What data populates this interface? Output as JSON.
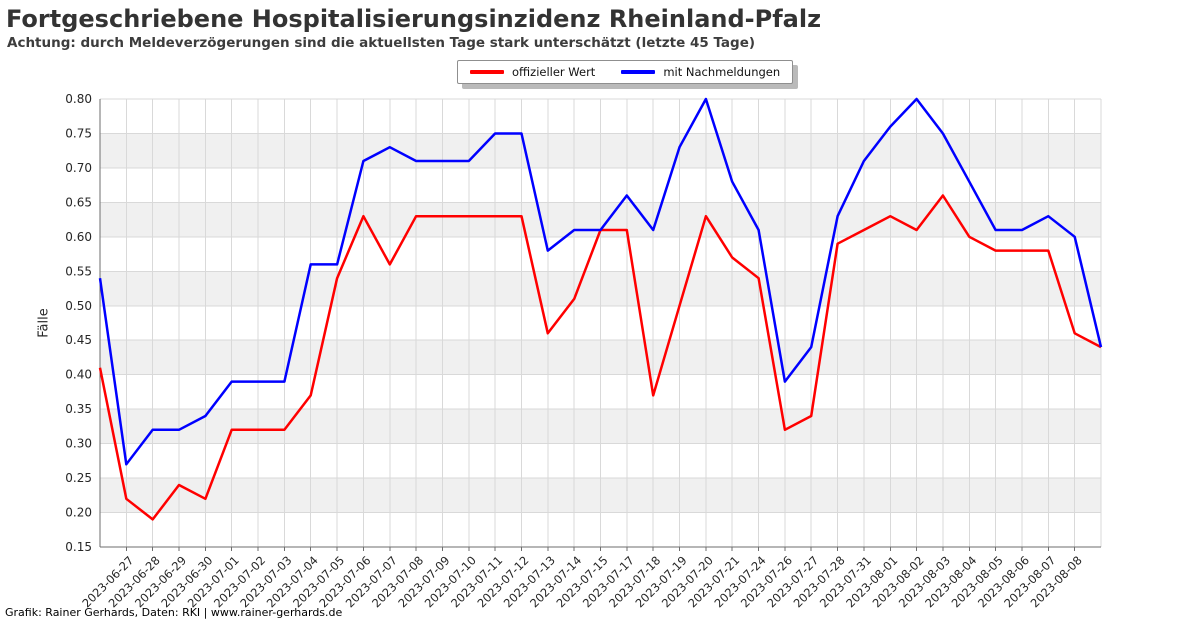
{
  "chart_data": {
    "type": "line",
    "title": "Fortgeschriebene Hospitalisierungsinzidenz Rheinland-Pfalz",
    "subtitle": "Achtung: durch Meldeverzögerungen sind die aktuellsten Tage stark unterschätzt (letzte 45 Tage)",
    "ylabel": "Fälle",
    "xlabel": "",
    "ylim": [
      0.15,
      0.8
    ],
    "ytick_step": 0.05,
    "grid": true,
    "legend_position": "top-center",
    "band_color": "#f0f0f0",
    "gridline_color": "#d9d9d9",
    "spine_color": "#6e6e6e",
    "tick_label_color": "#262626",
    "categories": [
      "2023-06-27",
      "2023-06-28",
      "2023-06-29",
      "2023-06-30",
      "2023-07-01",
      "2023-07-02",
      "2023-07-03",
      "2023-07-04",
      "2023-07-05",
      "2023-07-06",
      "2023-07-07",
      "2023-07-08",
      "2023-07-09",
      "2023-07-10",
      "2023-07-11",
      "2023-07-12",
      "2023-07-13",
      "2023-07-14",
      "2023-07-15",
      "2023-07-17",
      "2023-07-18",
      "2023-07-19",
      "2023-07-20",
      "2023-07-21",
      "2023-07-24",
      "2023-07-26",
      "2023-07-27",
      "2023-07-28",
      "2023-07-31",
      "2023-08-01",
      "2023-08-02",
      "2023-08-03",
      "2023-08-04",
      "2023-08-05",
      "2023-08-06",
      "2023-08-07",
      "2023-08-08"
    ],
    "series": [
      {
        "name": "offizieller Wert",
        "color": "#ff0000",
        "values": [
          0.22,
          0.19,
          0.24,
          0.22,
          0.32,
          0.32,
          0.32,
          0.37,
          0.54,
          0.63,
          0.56,
          0.63,
          0.63,
          0.63,
          0.63,
          0.63,
          0.46,
          0.51,
          0.61,
          0.61,
          0.37,
          0.5,
          0.63,
          0.57,
          0.54,
          0.32,
          0.34,
          0.59,
          0.61,
          0.63,
          0.61,
          0.66,
          0.6,
          0.58,
          0.58,
          0.58,
          0.46
        ],
        "edge_start": 0.41,
        "edge_end": 0.44
      },
      {
        "name": "mit Nachmeldungen",
        "color": "#0000ff",
        "values": [
          0.27,
          0.32,
          0.32,
          0.34,
          0.39,
          0.39,
          0.39,
          0.56,
          0.56,
          0.71,
          0.73,
          0.71,
          0.71,
          0.71,
          0.75,
          0.75,
          0.58,
          0.61,
          0.61,
          0.66,
          0.61,
          0.73,
          0.8,
          0.68,
          0.61,
          0.39,
          0.44,
          0.63,
          0.71,
          0.76,
          0.8,
          0.75,
          0.68,
          0.61,
          0.61,
          0.63,
          0.6
        ],
        "edge_start": 0.54,
        "edge_end": 0.44
      }
    ]
  },
  "footer": {
    "credit": "Grafik: Rainer Gerhards, Daten: RKI | www.rainer-gerhards.de"
  }
}
